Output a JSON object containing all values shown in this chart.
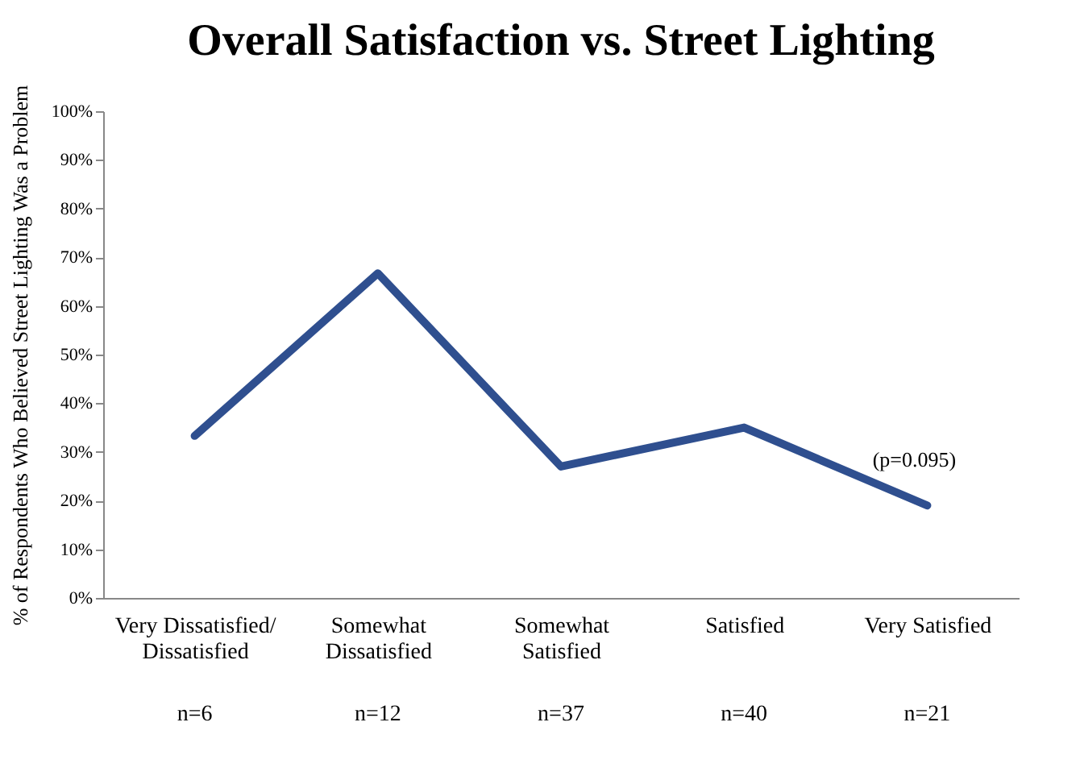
{
  "chart_data": {
    "type": "line",
    "title": "Overall Satisfaction vs. Street Lighting",
    "ylabel": "% of Respondents Who Believed Street Lighting Was a Problem",
    "categories": [
      "Very Dissatisfied/Dissatisfied",
      "Somewhat Dissatisfied",
      "Somewhat Satisfied",
      "Satisfied",
      "Very Satisfied"
    ],
    "series": [
      {
        "color": "#2f4f8f",
        "values": [
          33.3,
          66.7,
          27,
          35,
          19
        ]
      }
    ],
    "ylim": [
      0,
      100
    ],
    "yticks": [
      {
        "value": 0,
        "label": "0%"
      },
      {
        "value": 10,
        "label": "10%"
      },
      {
        "value": 20,
        "label": "20%"
      },
      {
        "value": 30,
        "label": "30%"
      },
      {
        "value": 40,
        "label": "40%"
      },
      {
        "value": 50,
        "label": "50%"
      },
      {
        "value": 60,
        "label": "60%"
      },
      {
        "value": 70,
        "label": "70%"
      },
      {
        "value": 80,
        "label": "80%"
      },
      {
        "value": 90,
        "label": "90%"
      },
      {
        "value": 100,
        "label": "100%"
      }
    ],
    "annotations": [
      "n=6",
      "n=12",
      "n=37",
      "n=40",
      "n=21",
      {
        "text": "(p=0.095)",
        "x": "Very Satisfied",
        "y": 19
      }
    ],
    "grid": false,
    "marker": "none",
    "line_style": "solid"
  }
}
